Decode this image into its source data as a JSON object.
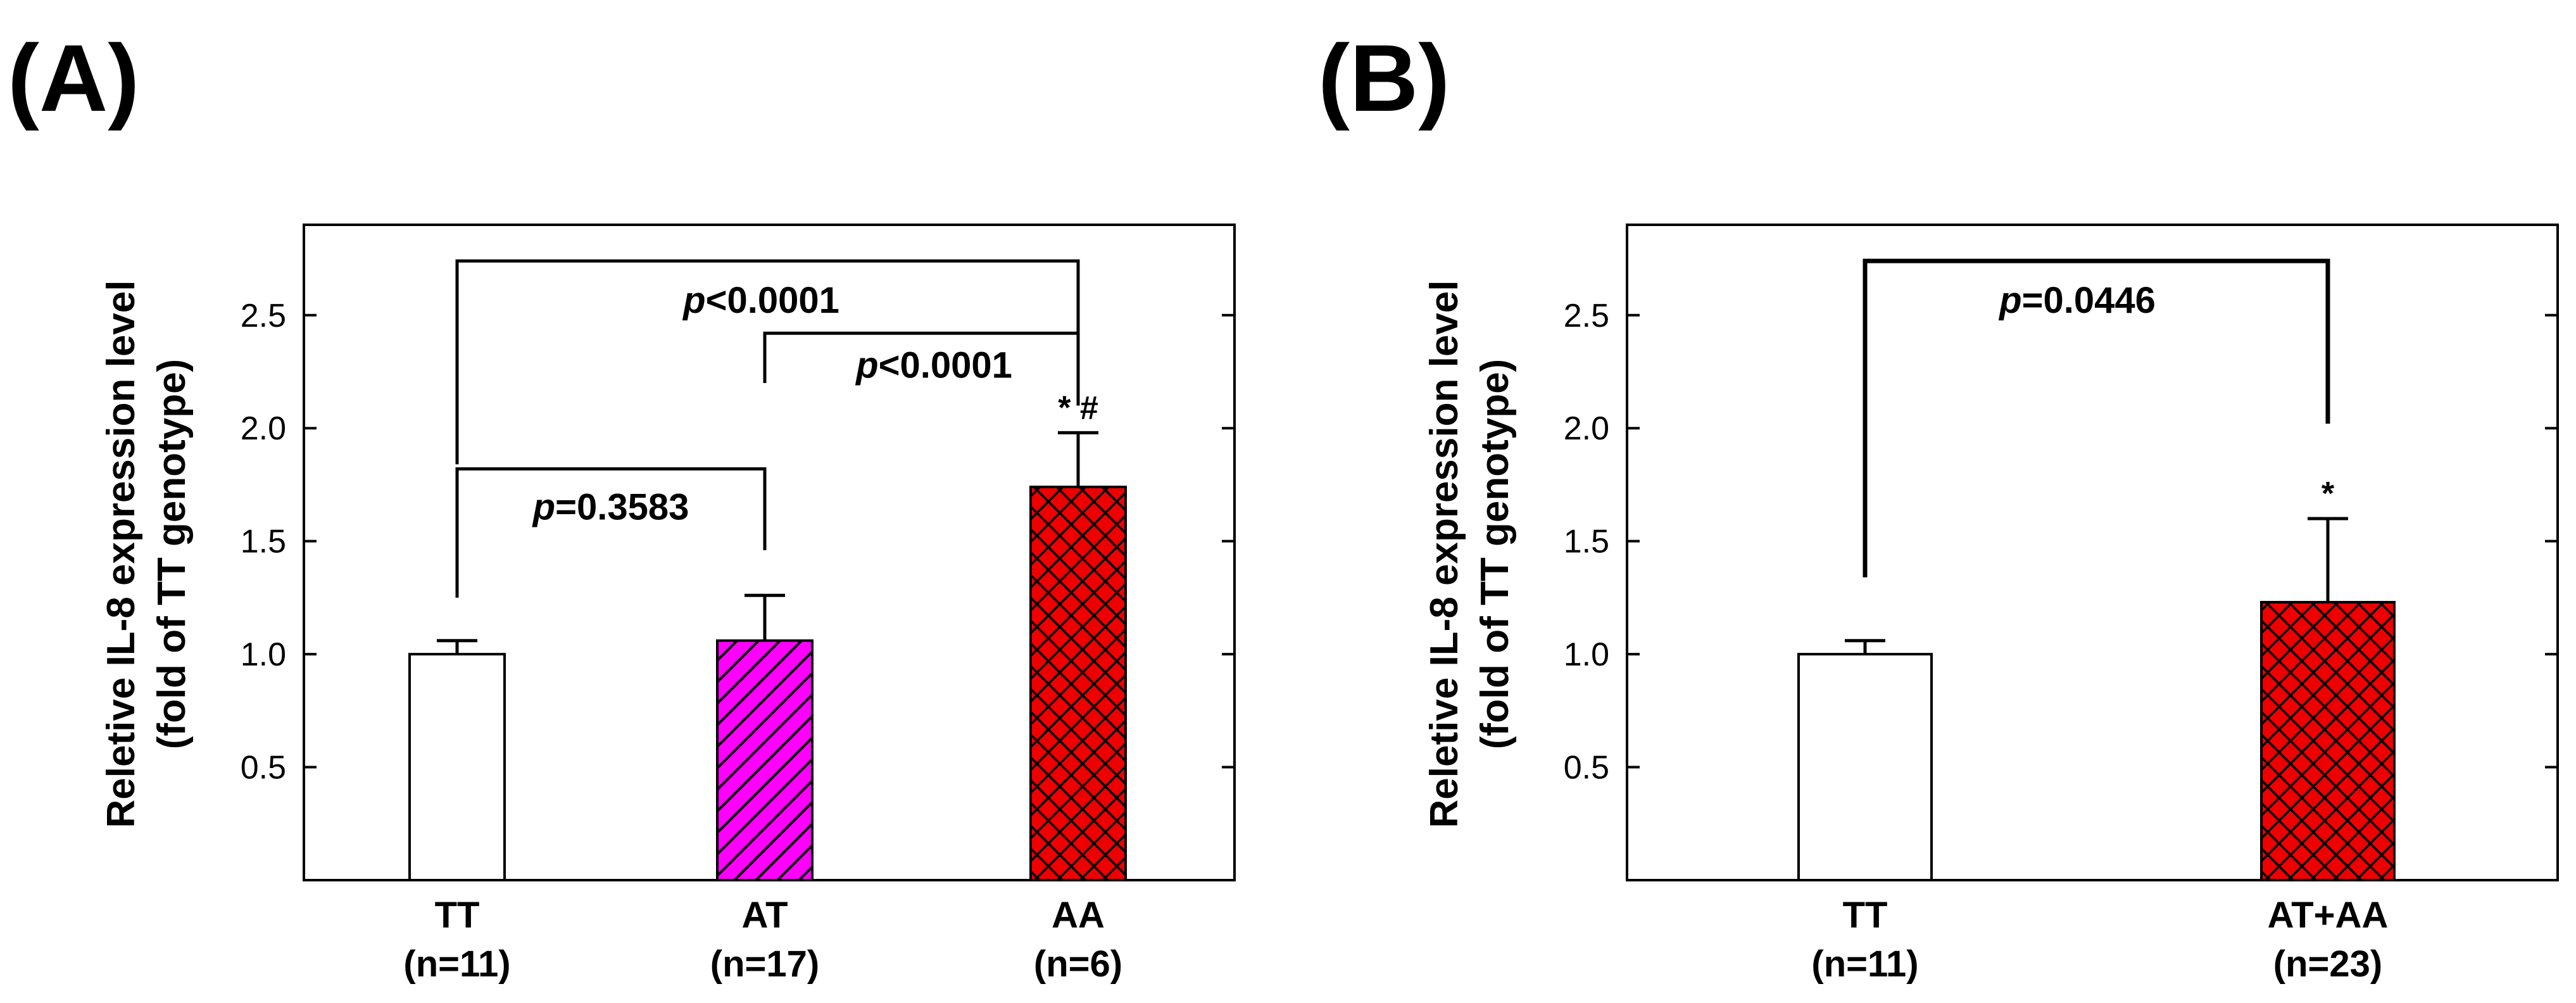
{
  "chart_data": [
    {
      "panel": "(A)",
      "type": "bar",
      "ylabel_line1": "Reletive IL-8 expression level",
      "ylabel_line2": "(fold of TT genotype)",
      "ylim": [
        0,
        2.9
      ],
      "yticks": [
        "0.5",
        "1.0",
        "1.5",
        "2.0",
        "2.5"
      ],
      "ytick_values": [
        0.5,
        1.0,
        1.5,
        2.0,
        2.5
      ],
      "categories": [
        "TT",
        "AT",
        "AA"
      ],
      "category_n": [
        "(n=11)",
        "(n=17)",
        "(n=6)"
      ],
      "values": [
        1.0,
        1.06,
        1.74
      ],
      "errors": [
        0.06,
        0.2,
        0.24
      ],
      "fills": [
        "white",
        "magenta-hatch",
        "red-crosshatch"
      ],
      "significance": [
        "",
        "",
        "* #"
      ],
      "comparisons": [
        {
          "from": 0,
          "to": 1,
          "level": 1.82,
          "p_prefix": "p",
          "p_text": "=0.3583"
        },
        {
          "from": 1,
          "to": 2,
          "level": 2.42,
          "p_prefix": "p",
          "p_text": "<0.0001"
        },
        {
          "from": 0,
          "to": 2,
          "level": 2.74,
          "p_prefix": "p",
          "p_text": "<0.0001"
        }
      ]
    },
    {
      "panel": "(B)",
      "type": "bar",
      "ylabel_line1": "Reletive IL-8 expression level",
      "ylabel_line2": "(fold of TT genotype)",
      "ylim": [
        0,
        2.9
      ],
      "yticks": [
        "0.5",
        "1.0",
        "1.5",
        "2.0",
        "2.5"
      ],
      "ytick_values": [
        0.5,
        1.0,
        1.5,
        2.0,
        2.5
      ],
      "categories": [
        "TT",
        "AT+AA"
      ],
      "category_n": [
        "(n=11)",
        "(n=23)"
      ],
      "values": [
        1.0,
        1.23
      ],
      "errors": [
        0.06,
        0.37
      ],
      "fills": [
        "white",
        "red-crosshatch"
      ],
      "significance": [
        "",
        "*"
      ],
      "comparisons": [
        {
          "from": 0,
          "to": 1,
          "level": 2.74,
          "p_prefix": "p",
          "p_text": "=0.0446"
        }
      ]
    }
  ],
  "colors": {
    "magenta": "#ff00ff",
    "red": "#ee0000",
    "white": "#ffffff",
    "line": "#000000"
  }
}
